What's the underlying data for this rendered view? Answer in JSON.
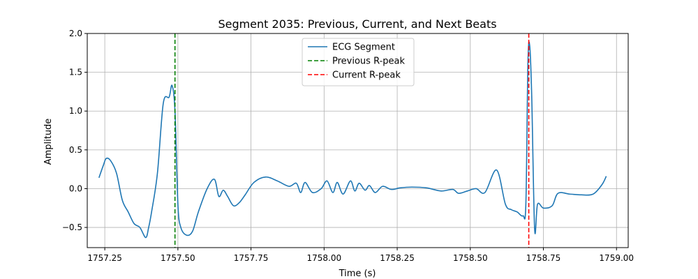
{
  "chart_data": {
    "type": "line",
    "title": "Segment 2035: Previous, Current, and Next Beats",
    "xlabel": "Time (s)",
    "ylabel": "Amplitude",
    "xlim": [
      1757.19,
      1759.04
    ],
    "ylim": [
      -0.76,
      2.0
    ],
    "x_ticks": [
      1757.25,
      1757.5,
      1757.75,
      1758.0,
      1758.25,
      1758.5,
      1758.75,
      1759.0
    ],
    "x_tick_labels": [
      "1757.25",
      "1757.50",
      "1757.75",
      "1758.00",
      "1758.25",
      "1758.50",
      "1758.75",
      "1759.00"
    ],
    "y_ticks": [
      -0.5,
      0.0,
      0.5,
      1.0,
      1.5,
      2.0
    ],
    "y_tick_labels": [
      "−0.5",
      "0.0",
      "0.5",
      "1.0",
      "1.5",
      "2.0"
    ],
    "grid": true,
    "legend_position": "top-center",
    "series": [
      {
        "name": "ECG Segment",
        "color": "#1f77b4",
        "style": "solid",
        "x": [
          1757.23,
          1757.245,
          1757.255,
          1757.27,
          1757.29,
          1757.31,
          1757.33,
          1757.35,
          1757.37,
          1757.39,
          1757.4,
          1757.41,
          1757.43,
          1757.45,
          1757.47,
          1757.48,
          1757.49,
          1757.5,
          1757.51,
          1757.53,
          1757.55,
          1757.57,
          1757.6,
          1757.625,
          1757.64,
          1757.655,
          1757.67,
          1757.69,
          1757.71,
          1757.73,
          1757.76,
          1757.8,
          1757.84,
          1757.88,
          1757.905,
          1757.92,
          1757.935,
          1757.96,
          1757.99,
          1758.01,
          1758.03,
          1758.045,
          1758.065,
          1758.09,
          1758.105,
          1758.12,
          1758.14,
          1758.155,
          1758.175,
          1758.2,
          1758.23,
          1758.26,
          1758.3,
          1758.35,
          1758.4,
          1758.44,
          1758.46,
          1758.49,
          1758.52,
          1758.55,
          1758.59,
          1758.62,
          1758.64,
          1758.66,
          1758.68,
          1758.69,
          1758.697,
          1758.703,
          1758.71,
          1758.72,
          1758.73,
          1758.75,
          1758.78,
          1758.8,
          1758.84,
          1758.88,
          1758.92,
          1758.95,
          1758.965
        ],
        "values": [
          0.14,
          0.3,
          0.39,
          0.36,
          0.2,
          -0.15,
          -0.3,
          -0.45,
          -0.5,
          -0.63,
          -0.5,
          -0.3,
          0.2,
          1.1,
          1.18,
          1.33,
          1.0,
          -0.2,
          -0.5,
          -0.6,
          -0.55,
          -0.3,
          0.0,
          0.12,
          -0.1,
          -0.02,
          -0.1,
          -0.22,
          -0.18,
          -0.08,
          0.08,
          0.15,
          0.1,
          0.03,
          0.07,
          -0.05,
          0.08,
          -0.05,
          0.0,
          0.1,
          -0.05,
          0.08,
          -0.07,
          0.1,
          -0.03,
          0.07,
          -0.02,
          0.04,
          -0.05,
          0.03,
          -0.01,
          0.01,
          0.02,
          0.01,
          -0.03,
          -0.01,
          -0.06,
          -0.03,
          0.0,
          -0.05,
          0.24,
          -0.2,
          -0.27,
          -0.3,
          -0.35,
          -0.2,
          1.6,
          1.85,
          1.2,
          -0.52,
          -0.2,
          -0.25,
          -0.22,
          -0.06,
          -0.07,
          -0.08,
          -0.07,
          0.05,
          0.16
        ]
      },
      {
        "name": "Previous R-peak",
        "color": "#008000",
        "style": "dashed",
        "x_value": 1757.49
      },
      {
        "name": "Current R-peak",
        "color": "#ff0000",
        "style": "dashed",
        "x_value": 1758.7
      }
    ]
  }
}
